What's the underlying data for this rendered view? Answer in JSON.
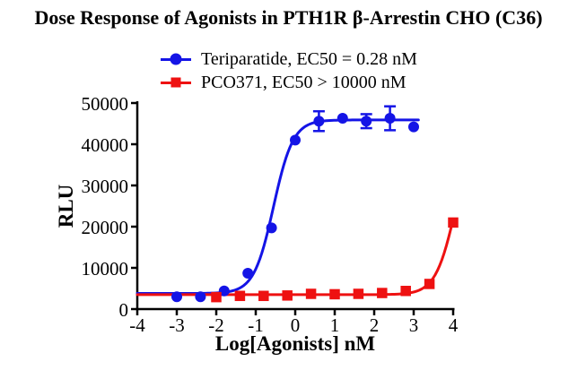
{
  "title": "Dose Response of Agonists in PTH1R β-Arrestin CHO (C36)",
  "legend": {
    "items": [
      {
        "label": "Teriparatide, EC50 = 0.28 nM",
        "marker": "circle",
        "color": "#1414e6"
      },
      {
        "label": "PCO371, EC50 > 10000 nM",
        "marker": "square",
        "color": "#ee1111"
      }
    ]
  },
  "chart_data": {
    "type": "line",
    "subtype": "dose-response 4PL sigmoid fits with scatter markers and error bars",
    "title": "Dose Response of Agonists in PTH1R β-Arrestin CHO (C36)",
    "xlabel": "Log[Agonists] nM",
    "ylabel": "RLU",
    "xlim": [
      -4,
      4
    ],
    "ylim": [
      0,
      50000
    ],
    "xticks": [
      -4,
      -3,
      -2,
      -1,
      0,
      1,
      2,
      3,
      4
    ],
    "yticks": [
      0,
      10000,
      20000,
      30000,
      40000,
      50000
    ],
    "grid": false,
    "legend_position": "top-center",
    "axis_color": "#000000",
    "series": [
      {
        "name": "Teriparatide, EC50 = 0.28 nM",
        "color": "#1414e6",
        "marker": "circle",
        "x": [
          -3,
          -2.4,
          -1.8,
          -1.2,
          -0.6,
          0,
          0.6,
          1.2,
          1.8,
          2.4,
          3
        ],
        "y": [
          3000,
          3000,
          4400,
          8700,
          19700,
          41000,
          45600,
          46300,
          45600,
          46300,
          44200
        ],
        "yerr": [
          null,
          null,
          null,
          null,
          null,
          null,
          2400,
          null,
          1700,
          2900,
          null
        ],
        "fit": {
          "model": "4PL",
          "bottom": 3800,
          "top": 45900,
          "logEC50": -0.55,
          "hill": 1.75,
          "draw_range": [
            -4,
            3.12
          ]
        }
      },
      {
        "name": "PCO371, EC50 > 10000 nM",
        "color": "#ee1111",
        "marker": "square",
        "x": [
          -2,
          -1.4,
          -0.8,
          -0.2,
          0.4,
          1,
          1.6,
          2.2,
          2.8,
          3.4,
          4
        ],
        "y": [
          2900,
          3200,
          3200,
          3300,
          3700,
          3600,
          3700,
          3900,
          4400,
          6100,
          21000
        ],
        "yerr": [
          null,
          null,
          null,
          null,
          null,
          null,
          null,
          null,
          null,
          null,
          null
        ],
        "fit": {
          "model": "4PL",
          "bottom": 3500,
          "top": 46000,
          "logEC50": 4.07,
          "hill": 1.7,
          "draw_range": [
            -4,
            4
          ]
        }
      }
    ]
  }
}
